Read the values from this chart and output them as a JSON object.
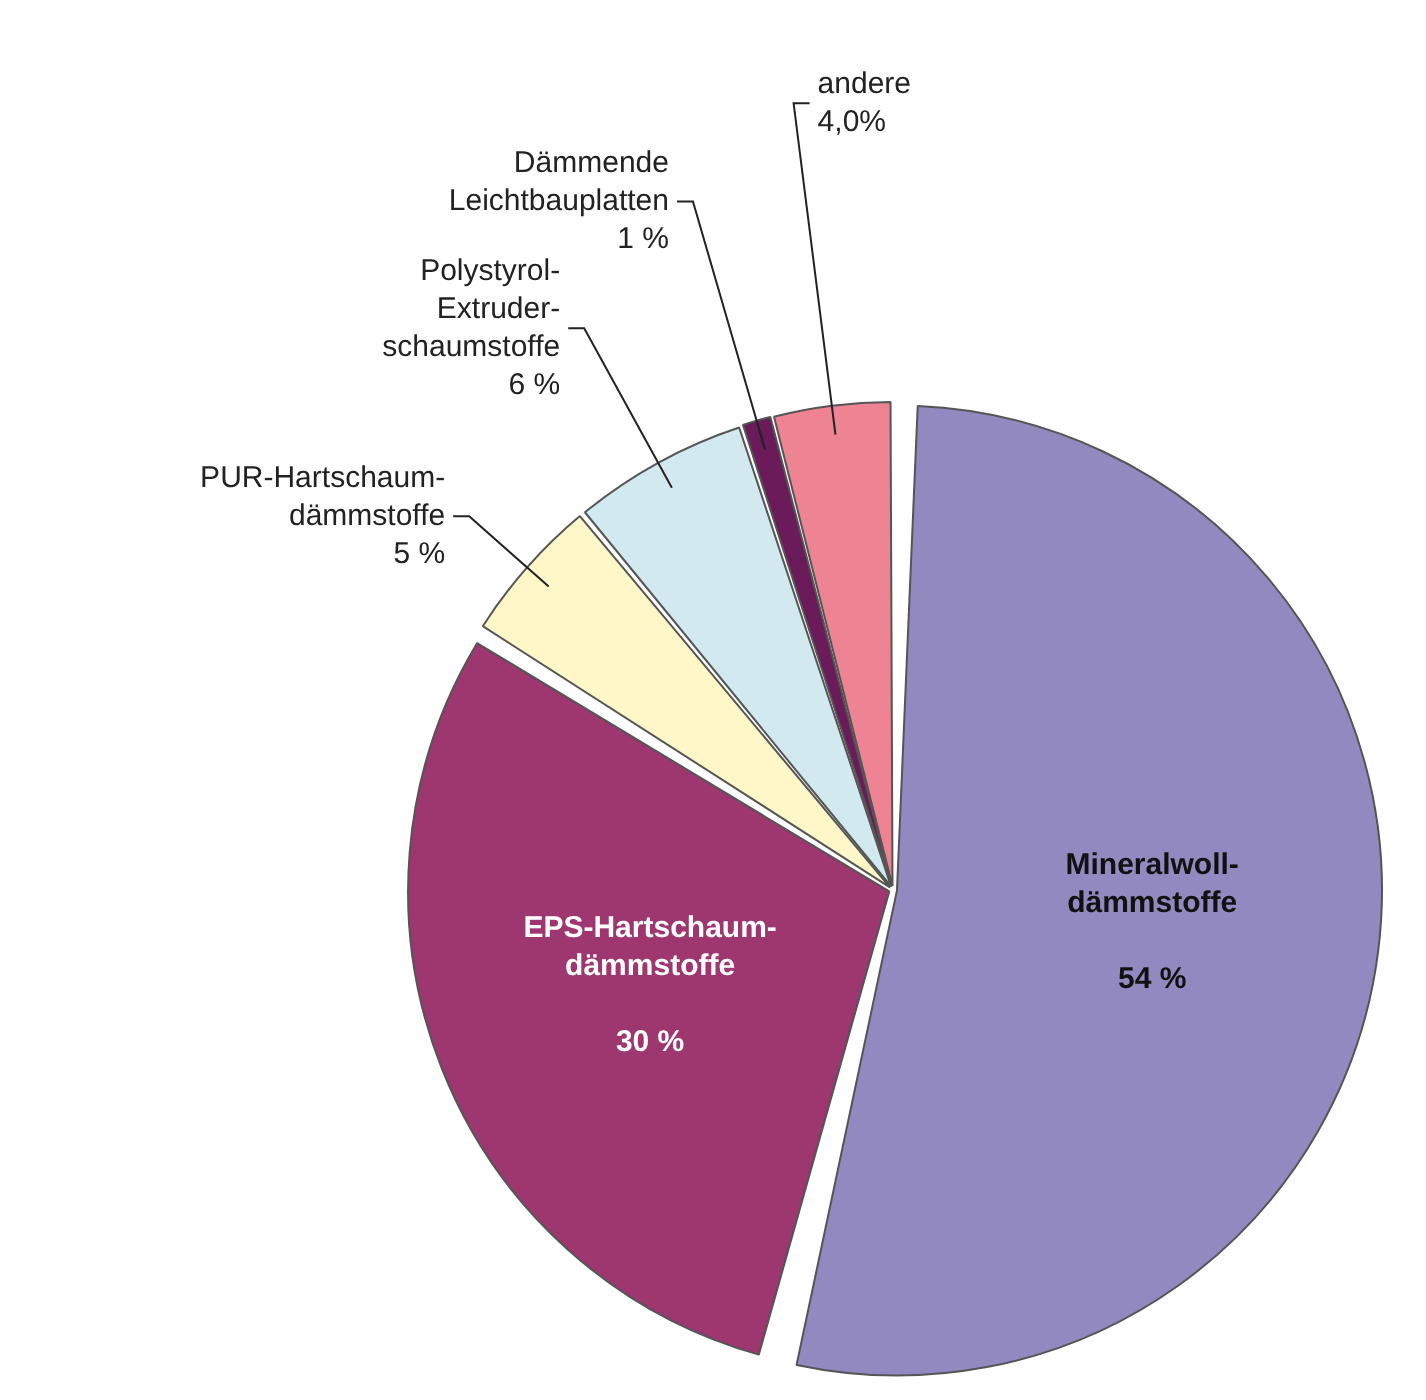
{
  "chart_data": {
    "type": "pie",
    "categories": [
      "Mineralwoll-\ndämmstoffe",
      "EPS-Hartschaum-\ndämmstoffe",
      "PUR-Hartschaum-\ndämmstoffe",
      "Polystyrol-\nExtruder-\nschaumstoffe",
      "Dämmende\nLeichtbauplatten",
      "andere"
    ],
    "values": [
      54,
      30,
      5,
      6,
      1,
      4.0
    ],
    "value_labels": [
      "54 %",
      "30 %",
      "5 %",
      "6 %",
      "1 %",
      "4,0%"
    ],
    "colors": [
      "#9189c0",
      "#9e3670",
      "#fff7c8",
      "#d3e9f0",
      "#6b1a5a",
      "#ee8493"
    ],
    "legend": false
  }
}
